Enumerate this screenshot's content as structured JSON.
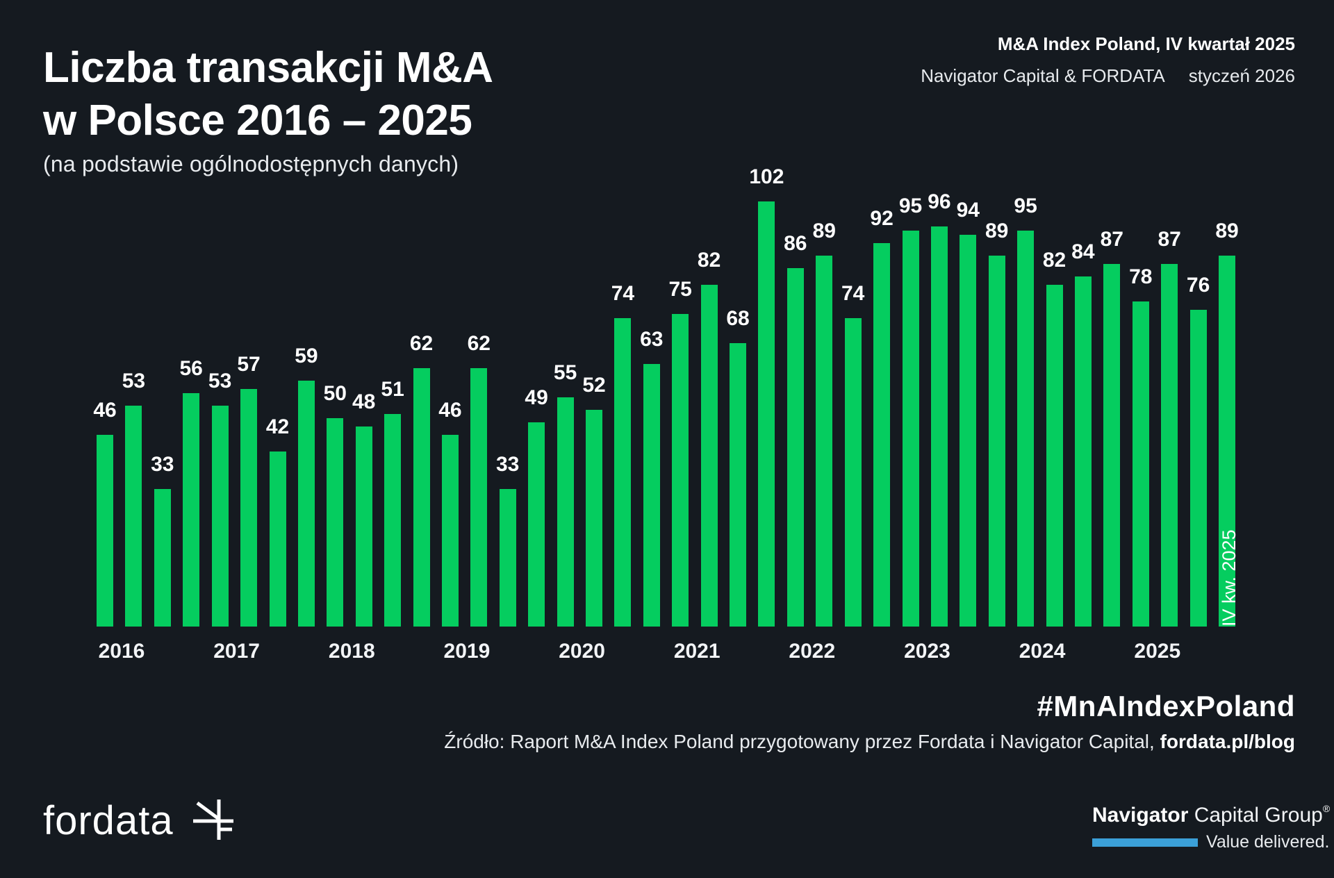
{
  "header": {
    "title_line1": "Liczba transakcji M&A",
    "title_line2": "w Polsce 2016 – 2025",
    "subtitle": "(na podstawie ogólnodostępnych danych)",
    "report_title": "M&A Index Poland, IV kwartał 2025",
    "report_authors": "Navigator Capital & FORDATA",
    "report_date": "styczeń 2026"
  },
  "chart_data": {
    "type": "bar",
    "title": "Liczba transakcji M&A w Polsce 2016 – 2025",
    "ylabel": "",
    "xlabel": "",
    "ylim": [
      0,
      102
    ],
    "grid": false,
    "legend": false,
    "bar_color": "#05cd5f",
    "last_bar_label": "IV kw. 2025",
    "years": [
      "2016",
      "2017",
      "2018",
      "2019",
      "2020",
      "2021",
      "2022",
      "2023",
      "2024",
      "2025"
    ],
    "series": [
      {
        "year": "2016",
        "values": [
          46,
          53,
          33,
          56
        ]
      },
      {
        "year": "2017",
        "values": [
          53,
          57,
          42,
          59
        ]
      },
      {
        "year": "2018",
        "values": [
          50,
          48,
          51,
          62
        ]
      },
      {
        "year": "2019",
        "values": [
          46,
          62,
          33,
          49
        ]
      },
      {
        "year": "2020",
        "values": [
          55,
          52,
          74,
          63
        ]
      },
      {
        "year": "2021",
        "values": [
          75,
          82,
          68,
          102
        ]
      },
      {
        "year": "2022",
        "values": [
          86,
          89,
          74,
          92
        ]
      },
      {
        "year": "2023",
        "values": [
          95,
          96,
          94,
          89
        ]
      },
      {
        "year": "2024",
        "values": [
          95,
          82,
          84,
          87
        ]
      },
      {
        "year": "2025",
        "values": [
          78,
          87,
          76,
          89
        ]
      }
    ]
  },
  "footer": {
    "hashtag": "#MnAIndexPoland",
    "source_prefix": "Źródło: Raport M&A Index Poland przygotowany przez Fordata i Navigator Capital, ",
    "source_link": "fordata.pl/blog",
    "fordata_wordmark": "fordata",
    "navigator_bold": "Navigator",
    "navigator_rest": " Capital Group",
    "navigator_reg": "®",
    "navigator_tagline": "Value delivered."
  },
  "colors": {
    "background": "#151a20",
    "bar_green": "#05cd5f",
    "text_white": "#ffffff",
    "navigator_blue": "#3ba0d8"
  }
}
